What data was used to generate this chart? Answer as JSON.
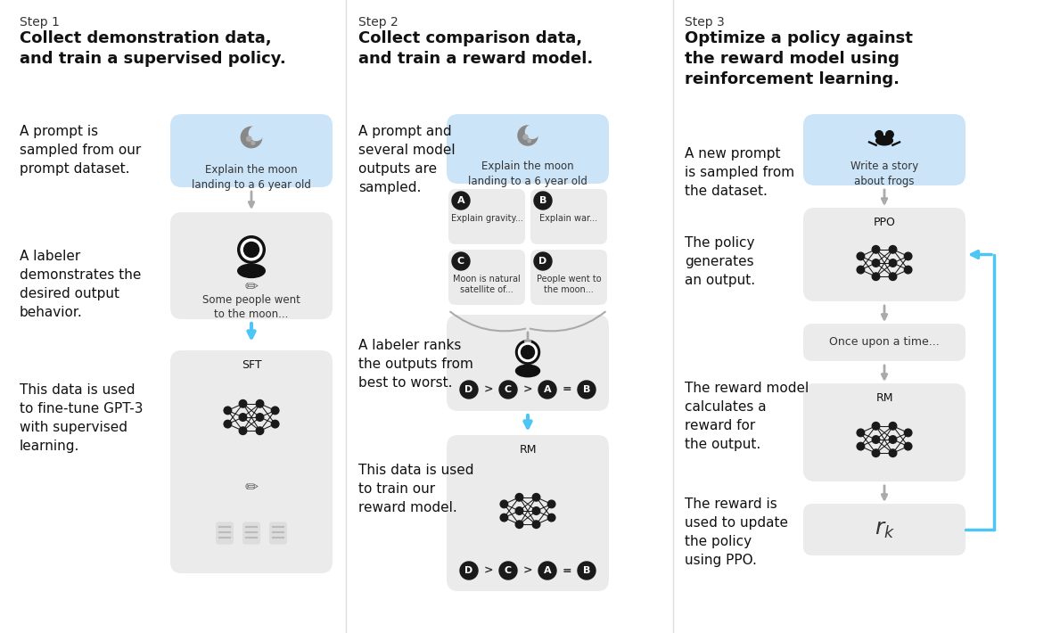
{
  "bg_color": "#ffffff",
  "prompt_bg": "#cce4f7",
  "arrow_blue": "#4dc6f5",
  "arrow_gray": "#aaaaaa",
  "box_gray": "#ebebeb",
  "text_dark": "#111111",
  "step1": {
    "step_label": "Step 1",
    "title": "Collect demonstration data,\nand train a supervised policy.",
    "desc1": "A prompt is\nsampled from our\nprompt dataset.",
    "desc2": "A labeler\ndemonstrates the\ndesired output\nbehavior.",
    "desc3": "This data is used\nto fine-tune GPT-3\nwith supervised\nlearning.",
    "box1_text": "Explain the moon\nlanding to a 6 year old",
    "box2_text": "Some people went\nto the moon...",
    "box3_label": "SFT"
  },
  "step2": {
    "step_label": "Step 2",
    "title": "Collect comparison data,\nand train a reward model.",
    "desc1": "A prompt and\nseveral model\noutputs are\nsampled.",
    "desc2": "A labeler ranks\nthe outputs from\nbest to worst.",
    "desc3": "This data is used\nto train our\nreward model.",
    "box1_text": "Explain the moon\nlanding to a 6 year old",
    "boxA_text": "Explain gravity...",
    "boxB_text": "Explain war...",
    "boxC_text": "Moon is natural\nsatellite of...",
    "boxD_text": "People went to\nthe moon...",
    "box3_label": "RM"
  },
  "step3": {
    "step_label": "Step 3",
    "title": "Optimize a policy against\nthe reward model using\nreinforcement learning.",
    "desc1": "A new prompt\nis sampled from\nthe dataset.",
    "desc2": "The policy\ngenerates\nan output.",
    "desc3": "The reward model\ncalculates a\nreward for\nthe output.",
    "desc4": "The reward is\nused to update\nthe policy\nusing PPO.",
    "box1_text": "Write a story\nabout frogs",
    "box2_label": "PPO",
    "box3_text": "Once upon a time...",
    "box4_label": "RM"
  }
}
